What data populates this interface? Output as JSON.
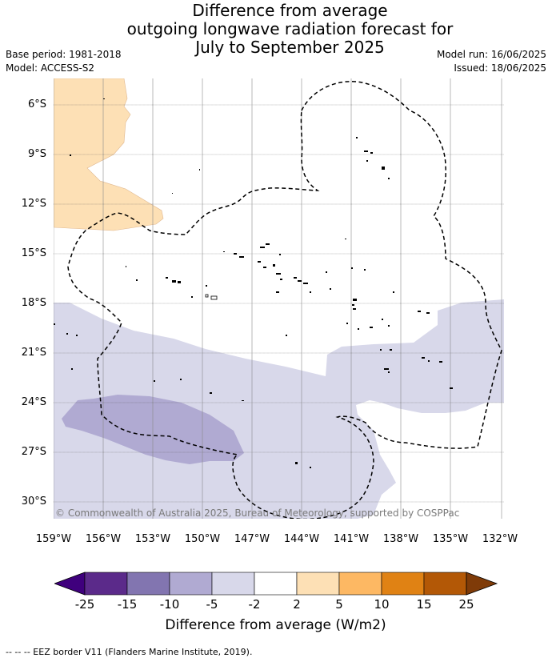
{
  "title_lines": [
    "Difference from average",
    "outgoing longwave radiation forecast for",
    "July to September 2025"
  ],
  "base_period": "Base period: 1981-2018",
  "model": "Model: ACCESS-S2",
  "model_run": "Model run: 16/06/2025",
  "issued": "Issued: 18/06/2025",
  "lat_labels": [
    "6°S",
    "9°S",
    "12°S",
    "15°S",
    "18°S",
    "21°S",
    "24°S",
    "27°S",
    "30°S"
  ],
  "lon_labels": [
    "159°W",
    "156°W",
    "153°W",
    "150°W",
    "147°W",
    "144°W",
    "141°W",
    "138°W",
    "135°W",
    "132°W"
  ],
  "copyright": "© Commonwealth of Australia 2025, Bureau of Meteorology, supported by COSPPac",
  "colorbar": {
    "ticks": [
      "-25",
      "-15",
      "-10",
      "-5",
      "-2",
      "2",
      "5",
      "10",
      "15",
      "25"
    ],
    "colors": [
      "#3f007d",
      "#5b2a8a",
      "#8275b0",
      "#b0aad2",
      "#d8d8ea",
      "#ffffff",
      "#fde0b5",
      "#fdb863",
      "#e08214",
      "#b35806",
      "#7f3b08"
    ],
    "label": "Difference from average (W/m2)"
  },
  "footer": "--  --  -- EEZ border V11 (Flanders Marine Institute, 2019)."
}
